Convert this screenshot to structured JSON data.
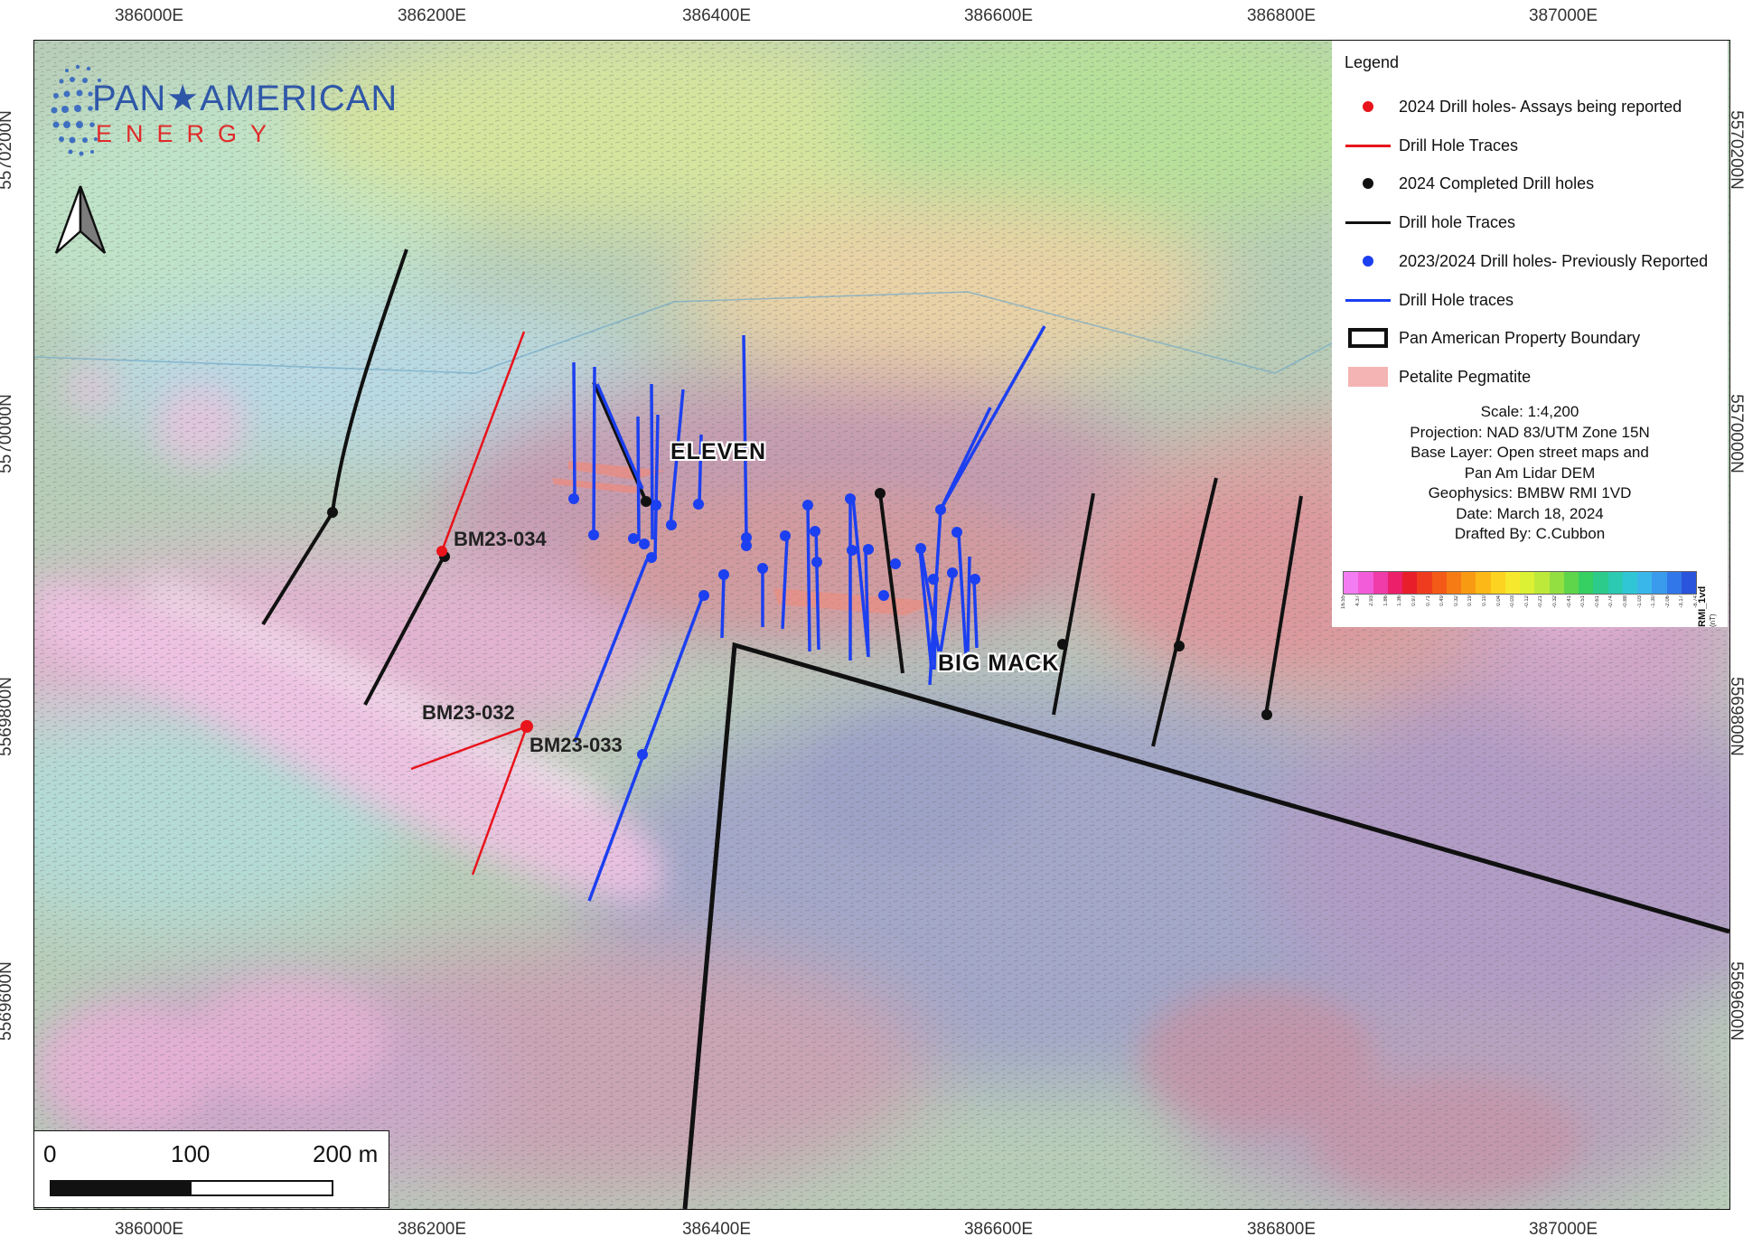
{
  "logo": {
    "word1": "PAN★AMERICAN",
    "word2": "ENERGY"
  },
  "axes": {
    "easting": [
      "386000E",
      "386200E",
      "386400E",
      "386600E",
      "386800E",
      "387000E"
    ],
    "northing": [
      "5570200N",
      "5570000N",
      "5569800N",
      "5569600N"
    ]
  },
  "labels": {
    "eleven": "ELEVEN",
    "big_mack": "BIG MACK",
    "bm23_034": "BM23-034",
    "bm23_032": "BM23-032",
    "bm23_033": "BM23-033"
  },
  "legend": {
    "title": "Legend",
    "items": [
      {
        "label": "2024 Drill holes- Assays being reported",
        "symbol": "red-dot",
        "color": "#e8131b"
      },
      {
        "label": "Drill Hole Traces",
        "symbol": "red-line",
        "color": "#e8131b"
      },
      {
        "label": "2024 Completed Drill holes",
        "symbol": "black-dot",
        "color": "#111111"
      },
      {
        "label": "Drill hole Traces",
        "symbol": "black-line",
        "color": "#111111"
      },
      {
        "label": "2023/2024 Drill holes- Previously Reported",
        "symbol": "blue-dot",
        "color": "#1c3ff0"
      },
      {
        "label": "Drill Hole traces",
        "symbol": "blue-line",
        "color": "#1c3ff0"
      },
      {
        "label": "Pan American Property Boundary",
        "symbol": "boundary-box",
        "color": "#111111"
      },
      {
        "label": "Petalite Pegmatite",
        "symbol": "pink-box",
        "color": "#f4b4b4"
      }
    ],
    "meta": [
      "Scale: 1:4,200",
      "Projection: NAD 83/UTM Zone 15N",
      "Base Layer: Open street maps and",
      "Pan Am Lidar DEM",
      "Geophysics: BMBW RMI 1VD",
      "Date: March 18, 2024",
      "Drafted By: C.Cubbon"
    ],
    "colorbar_label": "RMI_1vd"
  },
  "colorbar": {
    "colors": [
      "#f47cf2",
      "#f25cd9",
      "#ef3ca8",
      "#ec1f6a",
      "#e81f2b",
      "#ef3c1e",
      "#f45a17",
      "#f77b14",
      "#f99a13",
      "#fbb816",
      "#fcd321",
      "#f6e82d",
      "#dcf034",
      "#bde93a",
      "#93df42",
      "#5ed54a",
      "#35cf62",
      "#2dcb8b",
      "#2cc9b3",
      "#31c6d6",
      "#3ab7ea",
      "#3a9bec",
      "#3277ea",
      "#2a54dc"
    ],
    "ticks": [
      "16.55",
      "4.37",
      "2.93",
      "1.86",
      "1.36",
      "0.97",
      "0.71",
      "0.49",
      "0.32",
      "0.19",
      "0.10",
      "0.04",
      "-0.03",
      "-0.12",
      "-0.21",
      "-0.32",
      "-0.41",
      "-0.51",
      "-0.61",
      "-0.74",
      "-0.88",
      "-1.03",
      "-1.30",
      "-2.06",
      "-3.17",
      "-8.74"
    ],
    "unit": "(nT)"
  },
  "scale_bar": {
    "labels": [
      "0",
      "100",
      "200 m"
    ]
  },
  "colors": {
    "red": "#e8131b",
    "blue": "#1c3ff0",
    "black": "#111111"
  }
}
